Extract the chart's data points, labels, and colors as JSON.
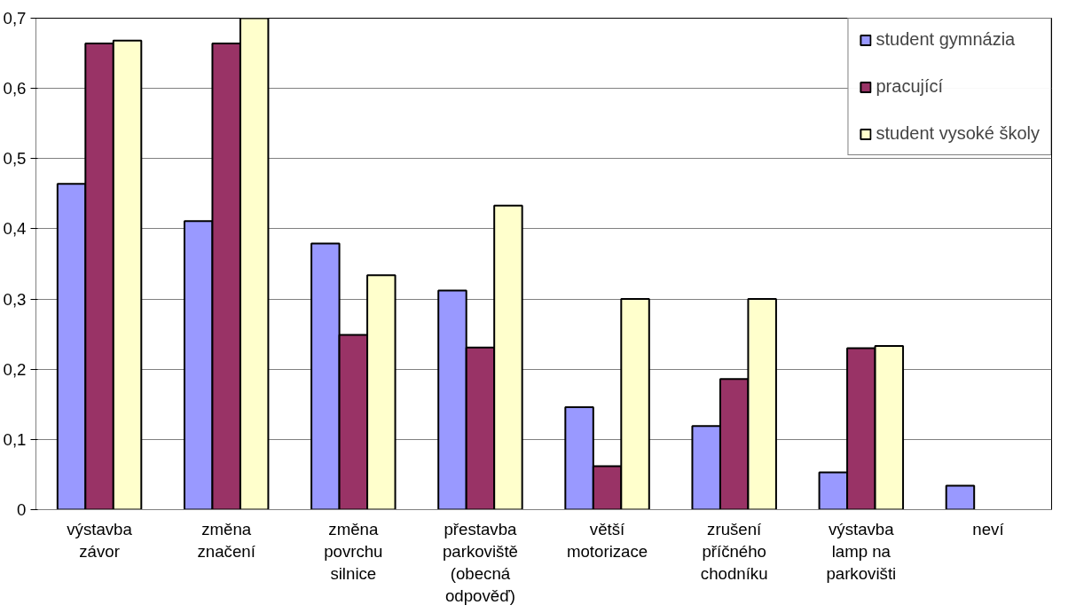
{
  "chart_data": {
    "type": "bar",
    "categories": [
      "výstavba závor",
      "změna značení",
      "změna povrchu silnice",
      "přestavba parkoviště (obecná odpověď)",
      "větší motorizace",
      "zrušení příčného chodníku",
      "výstavba lamp na parkovišti",
      "neví"
    ],
    "series": [
      {
        "name": "student gymnázia",
        "color": "#9999ff",
        "values": [
          0.464,
          0.411,
          0.379,
          0.312,
          0.146,
          0.119,
          0.053,
          0.034
        ]
      },
      {
        "name": "pracující",
        "color": "#993366",
        "values": [
          0.664,
          0.664,
          0.249,
          0.231,
          0.062,
          0.186,
          0.23,
          null
        ]
      },
      {
        "name": "student vysoké školy",
        "color": "#ffffcc",
        "values": [
          0.668,
          0.7,
          0.334,
          0.433,
          0.3,
          0.3,
          0.233,
          null
        ]
      }
    ],
    "ylim": [
      0,
      0.7
    ],
    "yticks": [
      {
        "value": 0,
        "label": "0"
      },
      {
        "value": 0.1,
        "label": "0,1"
      },
      {
        "value": 0.2,
        "label": "0,2"
      },
      {
        "value": 0.3,
        "label": "0,3"
      },
      {
        "value": 0.4,
        "label": "0,4"
      },
      {
        "value": 0.5,
        "label": "0,5"
      },
      {
        "value": 0.6,
        "label": "0,6"
      },
      {
        "value": 0.7,
        "label": "0,7"
      }
    ],
    "grid": "y",
    "legend": "top right"
  }
}
